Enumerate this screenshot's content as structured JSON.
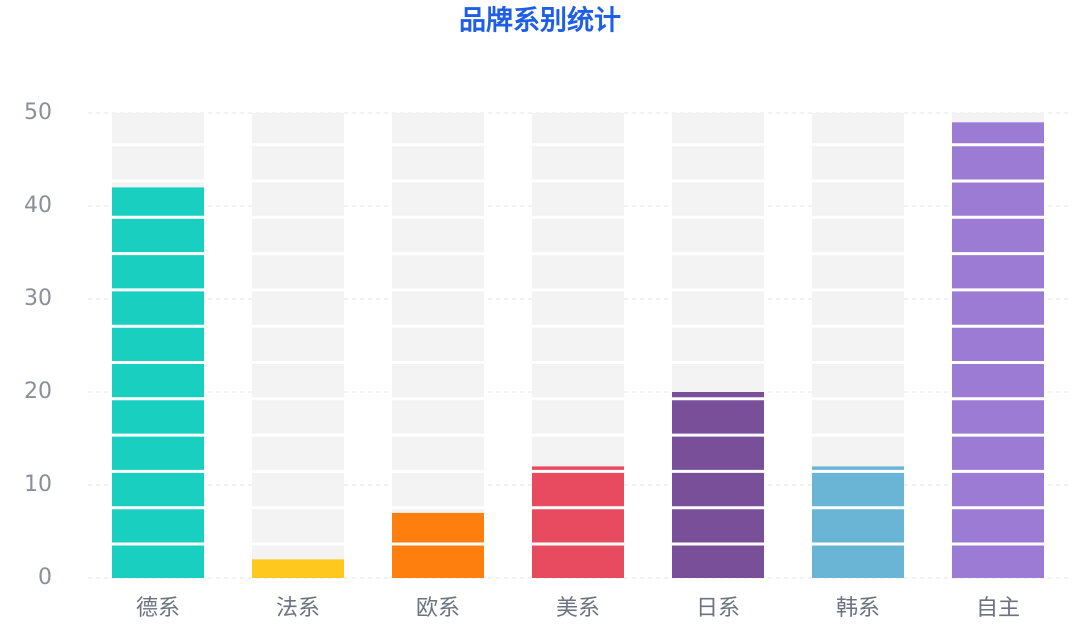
{
  "chart_data": {
    "type": "bar",
    "title": "品牌系别统计",
    "categories": [
      "德系",
      "法系",
      "欧系",
      "美系",
      "日系",
      "韩系",
      "自主"
    ],
    "values": [
      42,
      2,
      7,
      12,
      20,
      12,
      49
    ],
    "colors": [
      "#19cfc0",
      "#ffc81e",
      "#ff7f0e",
      "#e84a5f",
      "#7a4f9a",
      "#6ab4d6",
      "#9b7bd4"
    ],
    "title_color": "#1f5fe8",
    "background_bar_color": "#f3f3f3",
    "ylim": [
      0,
      50
    ],
    "yticks": [
      0,
      10,
      20,
      30,
      40,
      50
    ],
    "grid": true
  }
}
